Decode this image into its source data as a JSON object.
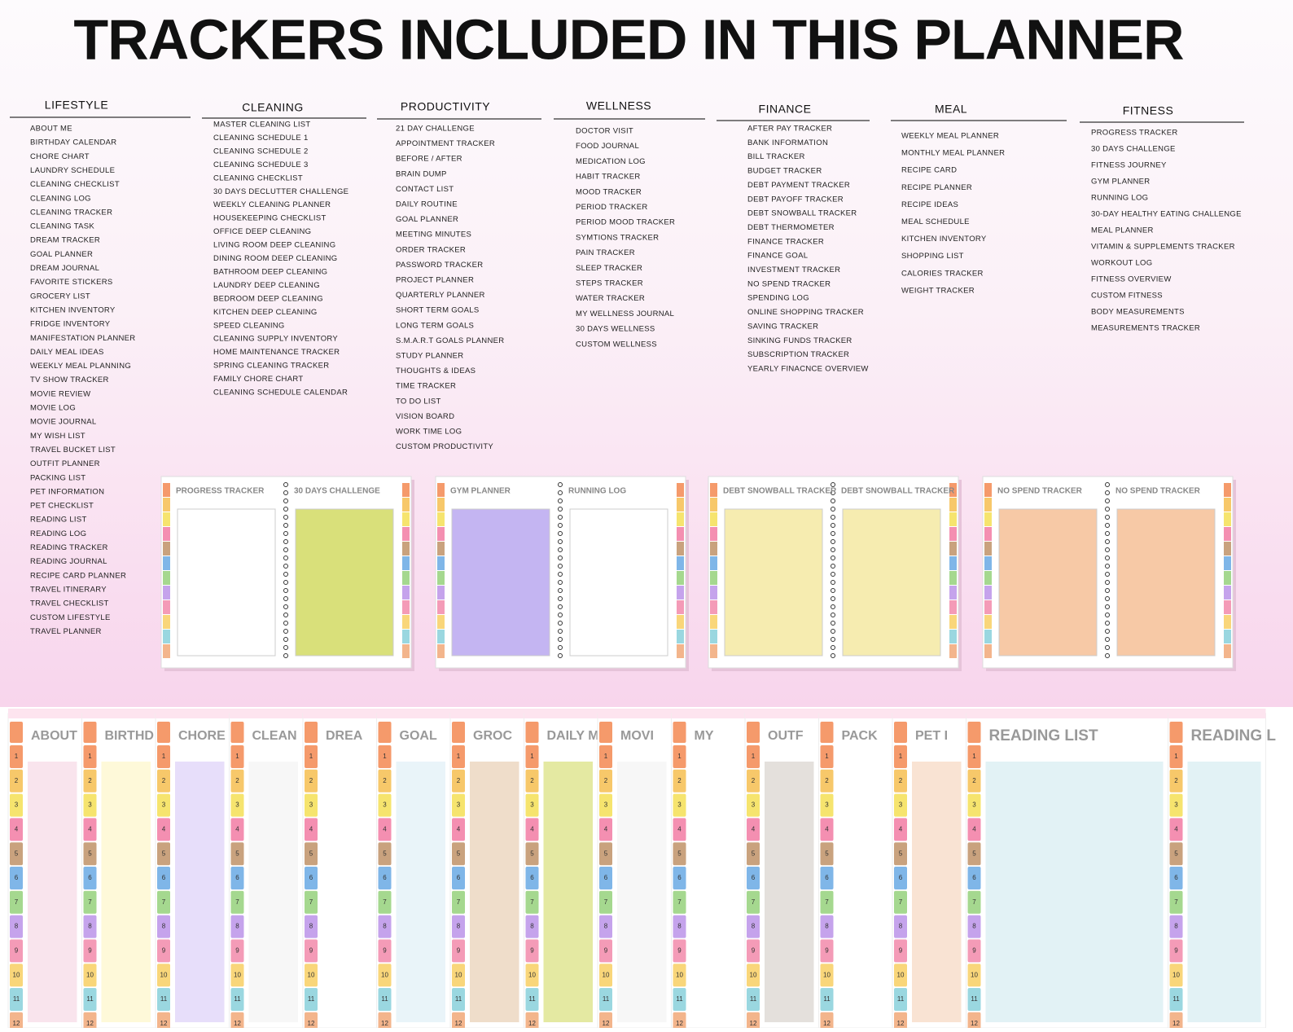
{
  "header": {
    "title": "TRACKERS INCLUDED IN THIS PLANNER"
  },
  "columns": [
    {
      "heading": "LIFESTYLE",
      "items": [
        "ABOUT ME",
        "BIRTHDAY CALENDAR",
        "CHORE CHART",
        "LAUNDRY SCHEDULE",
        "CLEANING CHECKLIST",
        "CLEANING LOG",
        "CLEANING TRACKER",
        "CLEANING TASK",
        "DREAM TRACKER",
        "GOAL PLANNER",
        "DREAM JOURNAL",
        "FAVORITE STICKERS",
        "GROCERY LIST",
        "KITCHEN INVENTORY",
        "FRIDGE INVENTORY",
        "MANIFESTATION PLANNER",
        "DAILY MEAL IDEAS",
        "WEEKLY MEAL PLANNING",
        "TV SHOW TRACKER",
        "MOVIE REVIEW",
        "MOVIE LOG",
        "MOVIE JOURNAL",
        "MY WISH LIST",
        "TRAVEL BUCKET LIST",
        "OUTFIT PLANNER",
        "PACKING LIST",
        "PET INFORMATION",
        "PET CHECKLIST",
        "READING LIST",
        "READING LOG",
        "READING TRACKER",
        "READING JOURNAL",
        "RECIPE CARD PLANNER",
        "TRAVEL ITINERARY",
        "TRAVEL CHECKLIST",
        "CUSTOM LIFESTYLE",
        "TRAVEL PLANNER"
      ]
    },
    {
      "heading": "CLEANING",
      "items": [
        "MASTER CLEANING LIST",
        "CLEANING SCHEDULE 1",
        "CLEANING SCHEDULE 2",
        "CLEANING SCHEDULE 3",
        "CLEANING CHECKLIST",
        "30 DAYS DECLUTTER CHALLENGE",
        "WEEKLY CLEANING PLANNER",
        "HOUSEKEEPING CHECKLIST",
        "OFFICE DEEP CLEANING",
        "LIVING ROOM DEEP CLEANING",
        "DINING ROOM DEEP CLEANING",
        "BATHROOM DEEP CLEANING",
        "LAUNDRY DEEP CLEANING",
        "BEDROOM DEEP CLEANING",
        "KITCHEN DEEP CLEANING",
        "SPEED CLEANING",
        "CLEANING SUPPLY INVENTORY",
        "HOME MAINTENANCE TRACKER",
        "SPRING CLEANING TRACKER",
        "FAMILY CHORE CHART",
        "CLEANING SCHEDULE CALENDAR"
      ]
    },
    {
      "heading": "PRODUCTIVITY",
      "items": [
        "21 DAY CHALLENGE",
        "APPOINTMENT TRACKER",
        "BEFORE / AFTER",
        "BRAIN DUMP",
        "CONTACT LIST",
        "DAILY ROUTINE",
        "GOAL PLANNER",
        "MEETING MINUTES",
        "ORDER TRACKER",
        "PASSWORD TRACKER",
        "PROJECT PLANNER",
        "QUARTERLY PLANNER",
        "SHORT TERM GOALS",
        "LONG TERM GOALS",
        "S.M.A.R.T GOALS PLANNER",
        "STUDY PLANNER",
        "THOUGHTS & IDEAS",
        "TIME TRACKER",
        "TO DO LIST",
        "VISION BOARD",
        "WORK TIME LOG",
        "CUSTOM PRODUCTIVITY"
      ]
    },
    {
      "heading": "WELLNESS",
      "items": [
        "DOCTOR VISIT",
        "FOOD JOURNAL",
        "MEDICATION LOG",
        "HABIT TRACKER",
        "MOOD TRACKER",
        "PERIOD TRACKER",
        "PERIOD MOOD TRACKER",
        "SYMTIONS TRACKER",
        "PAIN TRACKER",
        "SLEEP TRACKER",
        "STEPS TRACKER",
        "WATER TRACKER",
        "MY WELLNESS JOURNAL",
        "30 DAYS WELLNESS",
        "CUSTOM WELLNESS"
      ]
    },
    {
      "heading": "FINANCE",
      "items": [
        "AFTER PAY TRACKER",
        "BANK INFORMATION",
        "BILL TRACKER",
        "BUDGET TRACKER",
        "DEBT PAYMENT TRACKER",
        "DEBT PAYOFF TRACKER",
        "DEBT SNOWBALL TRACKER",
        "DEBT THERMOMETER",
        "FINANCE TRACKER",
        "FINANCE GOAL",
        "INVESTMENT TRACKER",
        "NO SPEND TRACKER",
        "SPENDING LOG",
        "ONLINE SHOPPING TRACKER",
        "SAVING TRACKER",
        "SINKING FUNDS TRACKER",
        "SUBSCRIPTION TRACKER",
        "YEARLY FINACNCE OVERVIEW"
      ]
    },
    {
      "heading": "MEAL",
      "items": [
        "WEEKLY MEAL PLANNER",
        "MONTHLY MEAL PLANNER",
        "RECIPE CARD",
        "RECIPE PLANNER",
        "RECIPE IDEAS",
        "MEAL SCHEDULE",
        "KITCHEN INVENTORY",
        "SHOPPING LIST",
        "CALORIES TRACKER",
        "WEIGHT TRACKER"
      ]
    },
    {
      "heading": "FITNESS",
      "items": [
        "PROGRESS TRACKER",
        "30 DAYS CHALLENGE",
        "FITNESS JOURNEY",
        "GYM PLANNER",
        "RUNNING LOG",
        "30-DAY HEALTHY EATING CHALLENGE",
        "MEAL PLANNER",
        "VITAMIN & SUPPLEMENTS TRACKER",
        "WORKOUT LOG",
        "FITNESS OVERVIEW",
        "CUSTOM FITNESS",
        "BODY MEASUREMENTS",
        "MEASUREMENTS TRACKER"
      ]
    }
  ],
  "previews": [
    {
      "left": "PROGRESS TRACKER",
      "right": "30 DAYS CHALLENGE"
    },
    {
      "left": "GYM PLANNER",
      "right": "RUNNING LOG"
    },
    {
      "left": "DEBT SNOWBALL TRACKER",
      "right": "DEBT SNOWBALL TRACKER"
    },
    {
      "left": "NO SPEND TRACKER",
      "right": "NO SPEND TRACKER"
    }
  ],
  "strip": {
    "tab_numbers": [
      "1",
      "2",
      "3",
      "4",
      "5",
      "6",
      "7",
      "8",
      "9",
      "10",
      "11",
      "12"
    ],
    "pages": [
      "ABOUT",
      "BIRTHD",
      "CHORE",
      "CLEAN",
      "DREA",
      "GOAL",
      "GROC",
      "DAILY M",
      "MOVI",
      "MY",
      "OUTF",
      "PACK",
      "PET I",
      "READING LIST",
      "READING L"
    ]
  }
}
